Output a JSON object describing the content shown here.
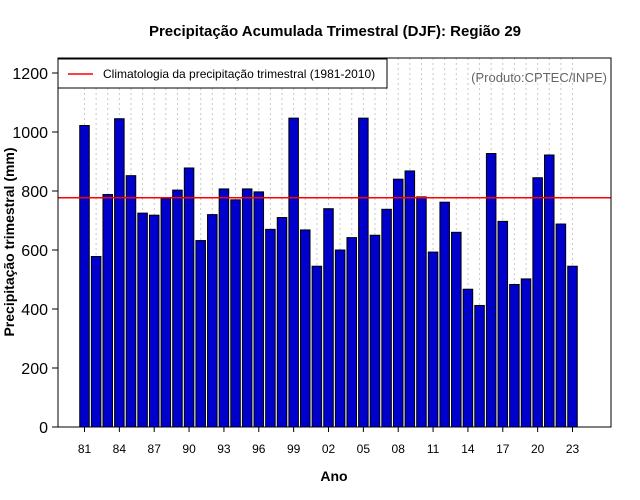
{
  "chart_data": {
    "type": "bar",
    "title": "Precipitação Acumulada Trimestral (DJF): Região 29",
    "xlabel": "Ano",
    "ylabel": "Precipitação trimestral (mm)",
    "ylim": [
      0,
      1250
    ],
    "yticks": [
      "0",
      "200",
      "400",
      "600",
      "800",
      "1000",
      "1200"
    ],
    "source_label": "(Produto:CPTEC/INPE)",
    "categories": [
      "81",
      "82",
      "83",
      "84",
      "85",
      "86",
      "87",
      "88",
      "89",
      "90",
      "91",
      "92",
      "93",
      "94",
      "95",
      "96",
      "97",
      "98",
      "99",
      "00",
      "01",
      "02",
      "03",
      "04",
      "05",
      "06",
      "07",
      "08",
      "09",
      "10",
      "11",
      "12",
      "13",
      "14",
      "15",
      "16",
      "17",
      "18",
      "19",
      "20",
      "21",
      "22",
      "23"
    ],
    "xtick_labels": [
      "81",
      "84",
      "87",
      "90",
      "93",
      "96",
      "99",
      "02",
      "05",
      "08",
      "11",
      "14",
      "17",
      "20",
      "23"
    ],
    "values": [
      1022,
      578,
      788,
      1045,
      852,
      725,
      718,
      775,
      803,
      878,
      632,
      720,
      807,
      770,
      807,
      797,
      670,
      710,
      1047,
      668,
      545,
      740,
      600,
      642,
      1047,
      650,
      738,
      840,
      868,
      780,
      593,
      762,
      660,
      467,
      412,
      927,
      697,
      483,
      502,
      845,
      922,
      688,
      545
    ],
    "climatology": {
      "label": "Climatologia da precipitação trimestral (1981-2010)",
      "value": 777,
      "color": "#ff0000"
    },
    "bar_color": "#0000cc",
    "legend_position": "top-left",
    "grid": "vertical-dotted"
  }
}
